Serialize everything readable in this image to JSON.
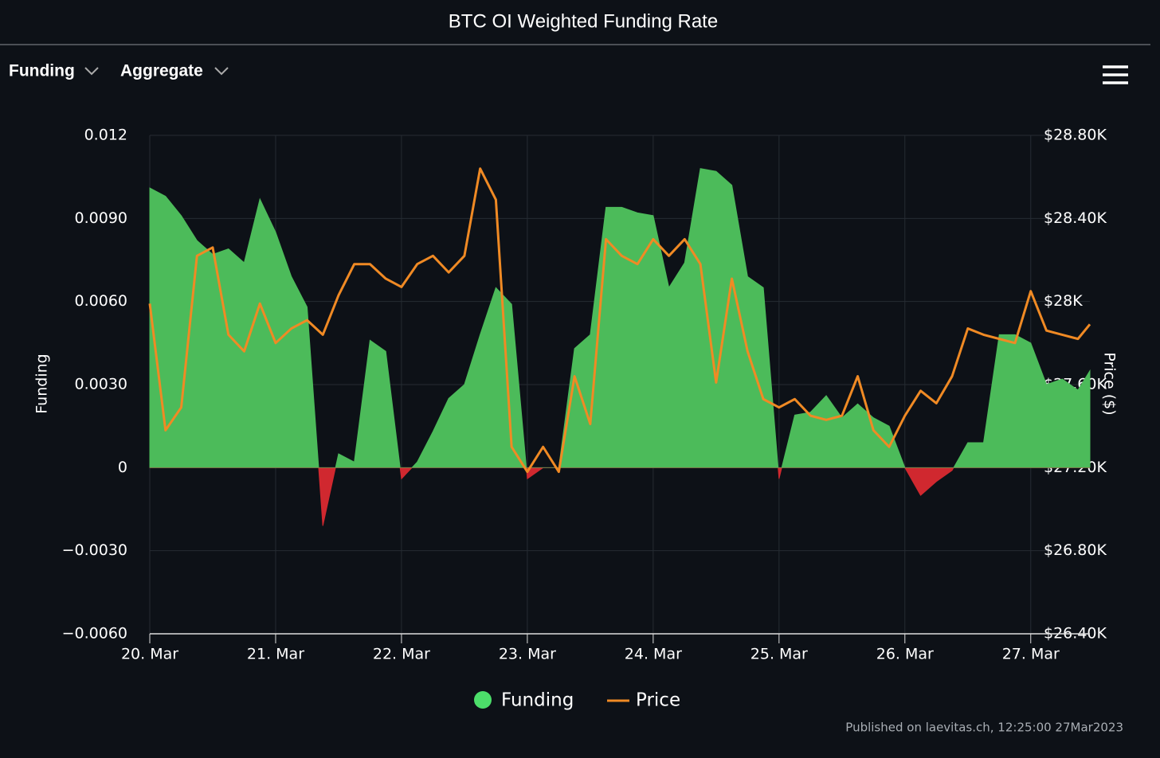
{
  "controls": [
    "Funding",
    "Aggregate"
  ],
  "footer": "Published on laevitas.ch, 12:25:00 27Mar2023",
  "chart_data": {
    "type": "area-line",
    "title": "BTC OI Weighted Funding Rate",
    "ylabel": "Funding",
    "y2label": "Price ($)",
    "grid": true,
    "xlim": [
      0,
      7.47
    ],
    "xticks": [
      {
        "value": 0,
        "label": "20. Mar"
      },
      {
        "value": 1,
        "label": "21. Mar"
      },
      {
        "value": 2,
        "label": "22. Mar"
      },
      {
        "value": 3,
        "label": "23. Mar"
      },
      {
        "value": 4,
        "label": "24. Mar"
      },
      {
        "value": 5,
        "label": "25. Mar"
      },
      {
        "value": 6,
        "label": "26. Mar"
      },
      {
        "value": 7,
        "label": "27. Mar"
      }
    ],
    "ylim": [
      -0.006,
      0.012
    ],
    "yticks": [
      0.012,
      {
        "value": 0.009,
        "label": "0.0090"
      },
      {
        "value": 0.006,
        "label": "0.0060"
      },
      {
        "value": 0.003,
        "label": "0.0030"
      },
      0,
      {
        "value": -0.003,
        "label": "−0.0030"
      },
      {
        "value": -0.006,
        "label": "−0.0060"
      }
    ],
    "y2lim": [
      26400,
      28800
    ],
    "y2ticks": [
      {
        "value": 28800,
        "label": "$28.80K"
      },
      {
        "value": 28400,
        "label": "$28.40K"
      },
      {
        "value": 28000,
        "label": "$28K"
      },
      {
        "value": 27600,
        "label": "$27.60K"
      },
      {
        "value": 27200,
        "label": "$27.20K"
      },
      {
        "value": 26800,
        "label": "$26.80K"
      },
      {
        "value": 26400,
        "label": "$26.40K"
      }
    ],
    "x": [
      0,
      0.125,
      0.25,
      0.375,
      0.5,
      0.625,
      0.75,
      0.875,
      1,
      1.125,
      1.25,
      1.375,
      1.5,
      1.625,
      1.75,
      1.875,
      2,
      2.125,
      2.25,
      2.375,
      2.5,
      2.625,
      2.75,
      2.875,
      3,
      3.125,
      3.25,
      3.375,
      3.5,
      3.625,
      3.75,
      3.875,
      4,
      4.125,
      4.25,
      4.375,
      4.5,
      4.625,
      4.75,
      4.875,
      5,
      5.125,
      5.25,
      5.375,
      5.5,
      5.625,
      5.75,
      5.875,
      6,
      6.125,
      6.25,
      6.375,
      6.5,
      6.625,
      6.75,
      6.875,
      7,
      7.125,
      7.25,
      7.375,
      7.47
    ],
    "series": [
      {
        "name": "Funding",
        "color": "#4cbb5a",
        "negative_color": "#d0282f",
        "legend_color": "#4cde6a",
        "values": [
          0.0101,
          0.0098,
          0.0091,
          0.0082,
          0.0077,
          0.0079,
          0.0074,
          0.0097,
          0.0085,
          0.0069,
          0.0058,
          -0.0021,
          0.0005,
          0.0002,
          0.0046,
          0.0042,
          -0.0004,
          0.0002,
          0.0013,
          0.0025,
          0.003,
          0.0048,
          0.0065,
          0.0059,
          -0.0004,
          0,
          0,
          0.0043,
          0.0048,
          0.0094,
          0.0094,
          0.0092,
          0.0091,
          0.0065,
          0.0074,
          0.0108,
          0.0107,
          0.0102,
          0.0069,
          0.0065,
          -0.0004,
          0.0019,
          0.002,
          0.0026,
          0.0018,
          0.0023,
          0.0018,
          0.0015,
          0,
          -0.001,
          -0.0005,
          -0.0001,
          0.0009,
          0.0009,
          0.0048,
          0.0048,
          0.0045,
          0.003,
          0.0032,
          0.0028,
          0.0035
        ]
      },
      {
        "name": "Price",
        "color": "#f08a24",
        "axis": "y2",
        "values": [
          27990,
          27380,
          27490,
          28220,
          28260,
          27840,
          27760,
          27990,
          27800,
          27870,
          27910,
          27840,
          28030,
          28180,
          28180,
          28110,
          28070,
          28180,
          28220,
          28140,
          28220,
          28640,
          28490,
          27300,
          27180,
          27300,
          27180,
          27640,
          27410,
          28300,
          28220,
          28180,
          28300,
          28220,
          28300,
          28180,
          27610,
          28110,
          27760,
          27530,
          27490,
          27530,
          27450,
          27430,
          27450,
          27640,
          27380,
          27300,
          27450,
          27570,
          27510,
          27640,
          27870,
          27840,
          27820,
          27800,
          28050,
          27860,
          27840,
          27820,
          27890
        ]
      }
    ]
  }
}
